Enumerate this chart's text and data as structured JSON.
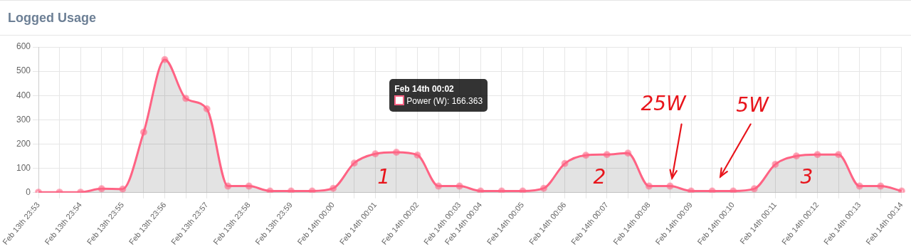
{
  "chart_data": {
    "type": "area",
    "title": "Logged Usage",
    "categories": [
      "Feb 13th 23:53",
      null,
      "Feb 13th 23:54",
      null,
      "Feb 13th 23:55",
      null,
      "Feb 13th 23:56",
      null,
      "Feb 13th 23:57",
      null,
      "Feb 13th 23:58",
      null,
      "Feb 13th 23:59",
      null,
      "Feb 14th 00:00",
      null,
      "Feb 14th 00:01",
      null,
      "Feb 14th 00:02",
      null,
      "Feb 14th 00:03",
      "Feb 14th 00:04",
      null,
      "Feb 14th 00:05",
      null,
      "Feb 14th 00:06",
      null,
      "Feb 14th 00:07",
      null,
      "Feb 14th 00:08",
      null,
      "Feb 14th 00:09",
      null,
      "Feb 14th 00:10",
      null,
      "Feb 14th 00:11",
      null,
      "Feb 14th 00:12",
      null,
      "Feb 14th 00:13",
      null,
      "Feb 14th 00:14"
    ],
    "series": [
      {
        "color": "#ff6384",
        "values": [
          2,
          2,
          2,
          16,
          15,
          249,
          548,
          388,
          345,
          27,
          27,
          7,
          7,
          7,
          18,
          122,
          160,
          166.363,
          155,
          27,
          27,
          7,
          7,
          7,
          18,
          120,
          154,
          157,
          163,
          27,
          27,
          7,
          7,
          7,
          16,
          117,
          151,
          157,
          157,
          27,
          27,
          7
        ]
      }
    ],
    "ylim": [
      0,
      600
    ],
    "yticks": [
      0,
      100,
      200,
      300,
      400,
      500,
      600
    ],
    "grid": true,
    "marker": "circle",
    "annotations": [
      "Feb 14th 00:02\nPower (W): 166.363",
      "1",
      "2",
      "3",
      "25W",
      "5W"
    ]
  }
}
